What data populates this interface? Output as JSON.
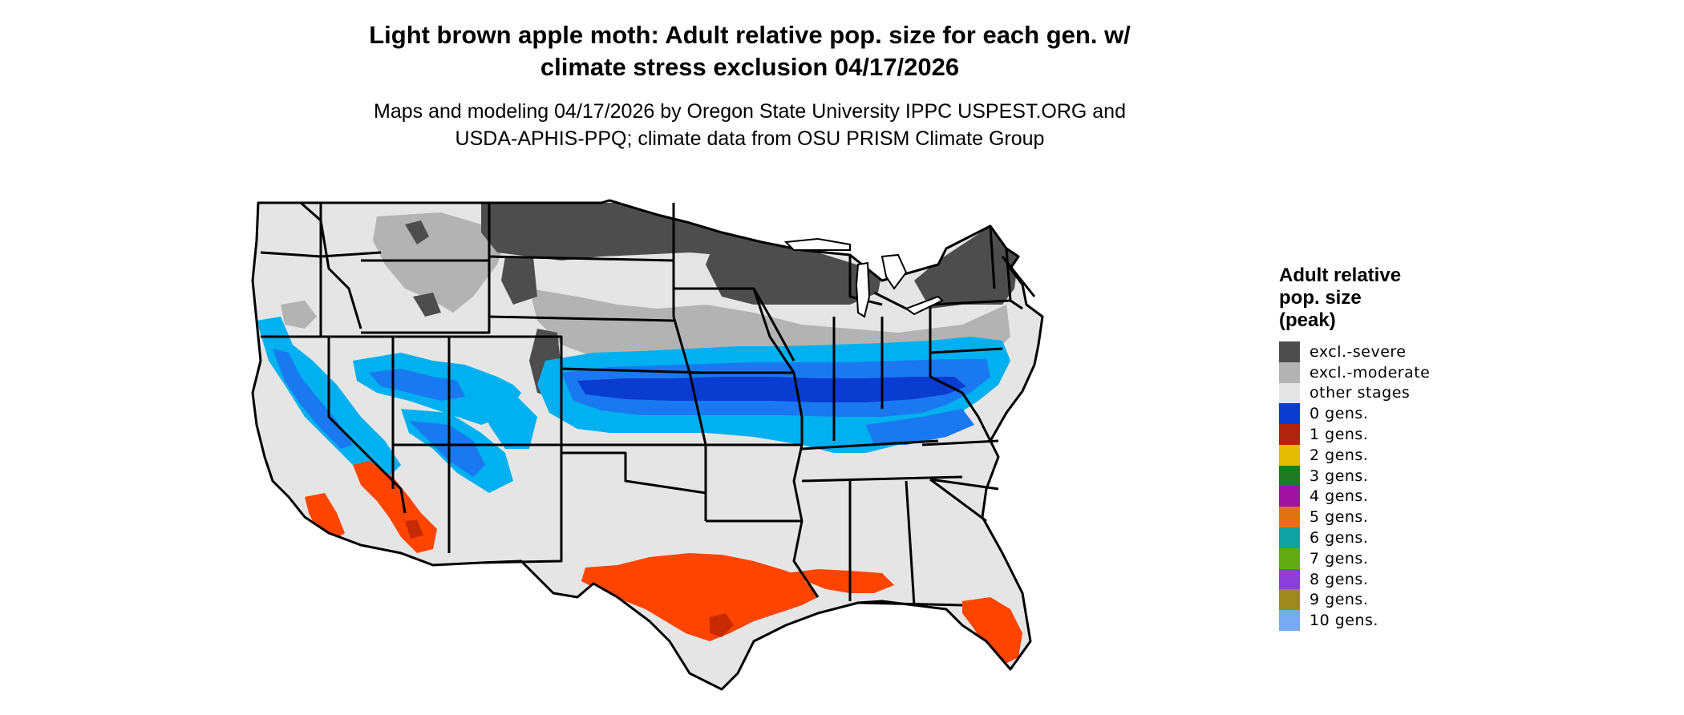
{
  "title": {
    "line1": "Light brown apple moth: Adult relative pop. size for each gen. w/",
    "line2": "climate stress exclusion 04/17/2026"
  },
  "subtitle": {
    "line1": "Maps and modeling 04/17/2026 by Oregon State University IPPC USPEST.ORG and",
    "line2": "USDA-APHIS-PPQ; climate data from OSU PRISM Climate Group"
  },
  "legend": {
    "title_line1": "Adult relative",
    "title_line2": "pop. size",
    "title_line3": "(peak)",
    "items": [
      {
        "label": "excl.-severe",
        "color": "#4d4d4d"
      },
      {
        "label": "excl.-moderate",
        "color": "#b3b3b3"
      },
      {
        "label": "other stages",
        "color": "#e5e5e5"
      },
      {
        "label": "0 gens.",
        "color": "#0b3cd0"
      },
      {
        "label": "1 gens.",
        "color": "#b0240e"
      },
      {
        "label": "2 gens.",
        "color": "#e3bb00"
      },
      {
        "label": "3 gens.",
        "color": "#1f7a22"
      },
      {
        "label": "4 gens.",
        "color": "#a012a0"
      },
      {
        "label": "5 gens.",
        "color": "#e07212"
      },
      {
        "label": "6 gens.",
        "color": "#0fa3a3"
      },
      {
        "label": "7 gens.",
        "color": "#62a912"
      },
      {
        "label": "8 gens.",
        "color": "#8a3fd6"
      },
      {
        "label": "9 gens.",
        "color": "#a0891c"
      },
      {
        "label": "10 gens.",
        "color": "#77aaf0"
      }
    ]
  },
  "map": {
    "colors": {
      "severe": "#4d4d4d",
      "moderate": "#b3b3b3",
      "other": "#e5e5e5",
      "blue_light": "#00b0f0",
      "blue_mid": "#1a78f0",
      "blue_dark": "#0b3cd0",
      "orange": "#ff4400",
      "orange_dark": "#c82a06",
      "border": "#000000"
    }
  }
}
